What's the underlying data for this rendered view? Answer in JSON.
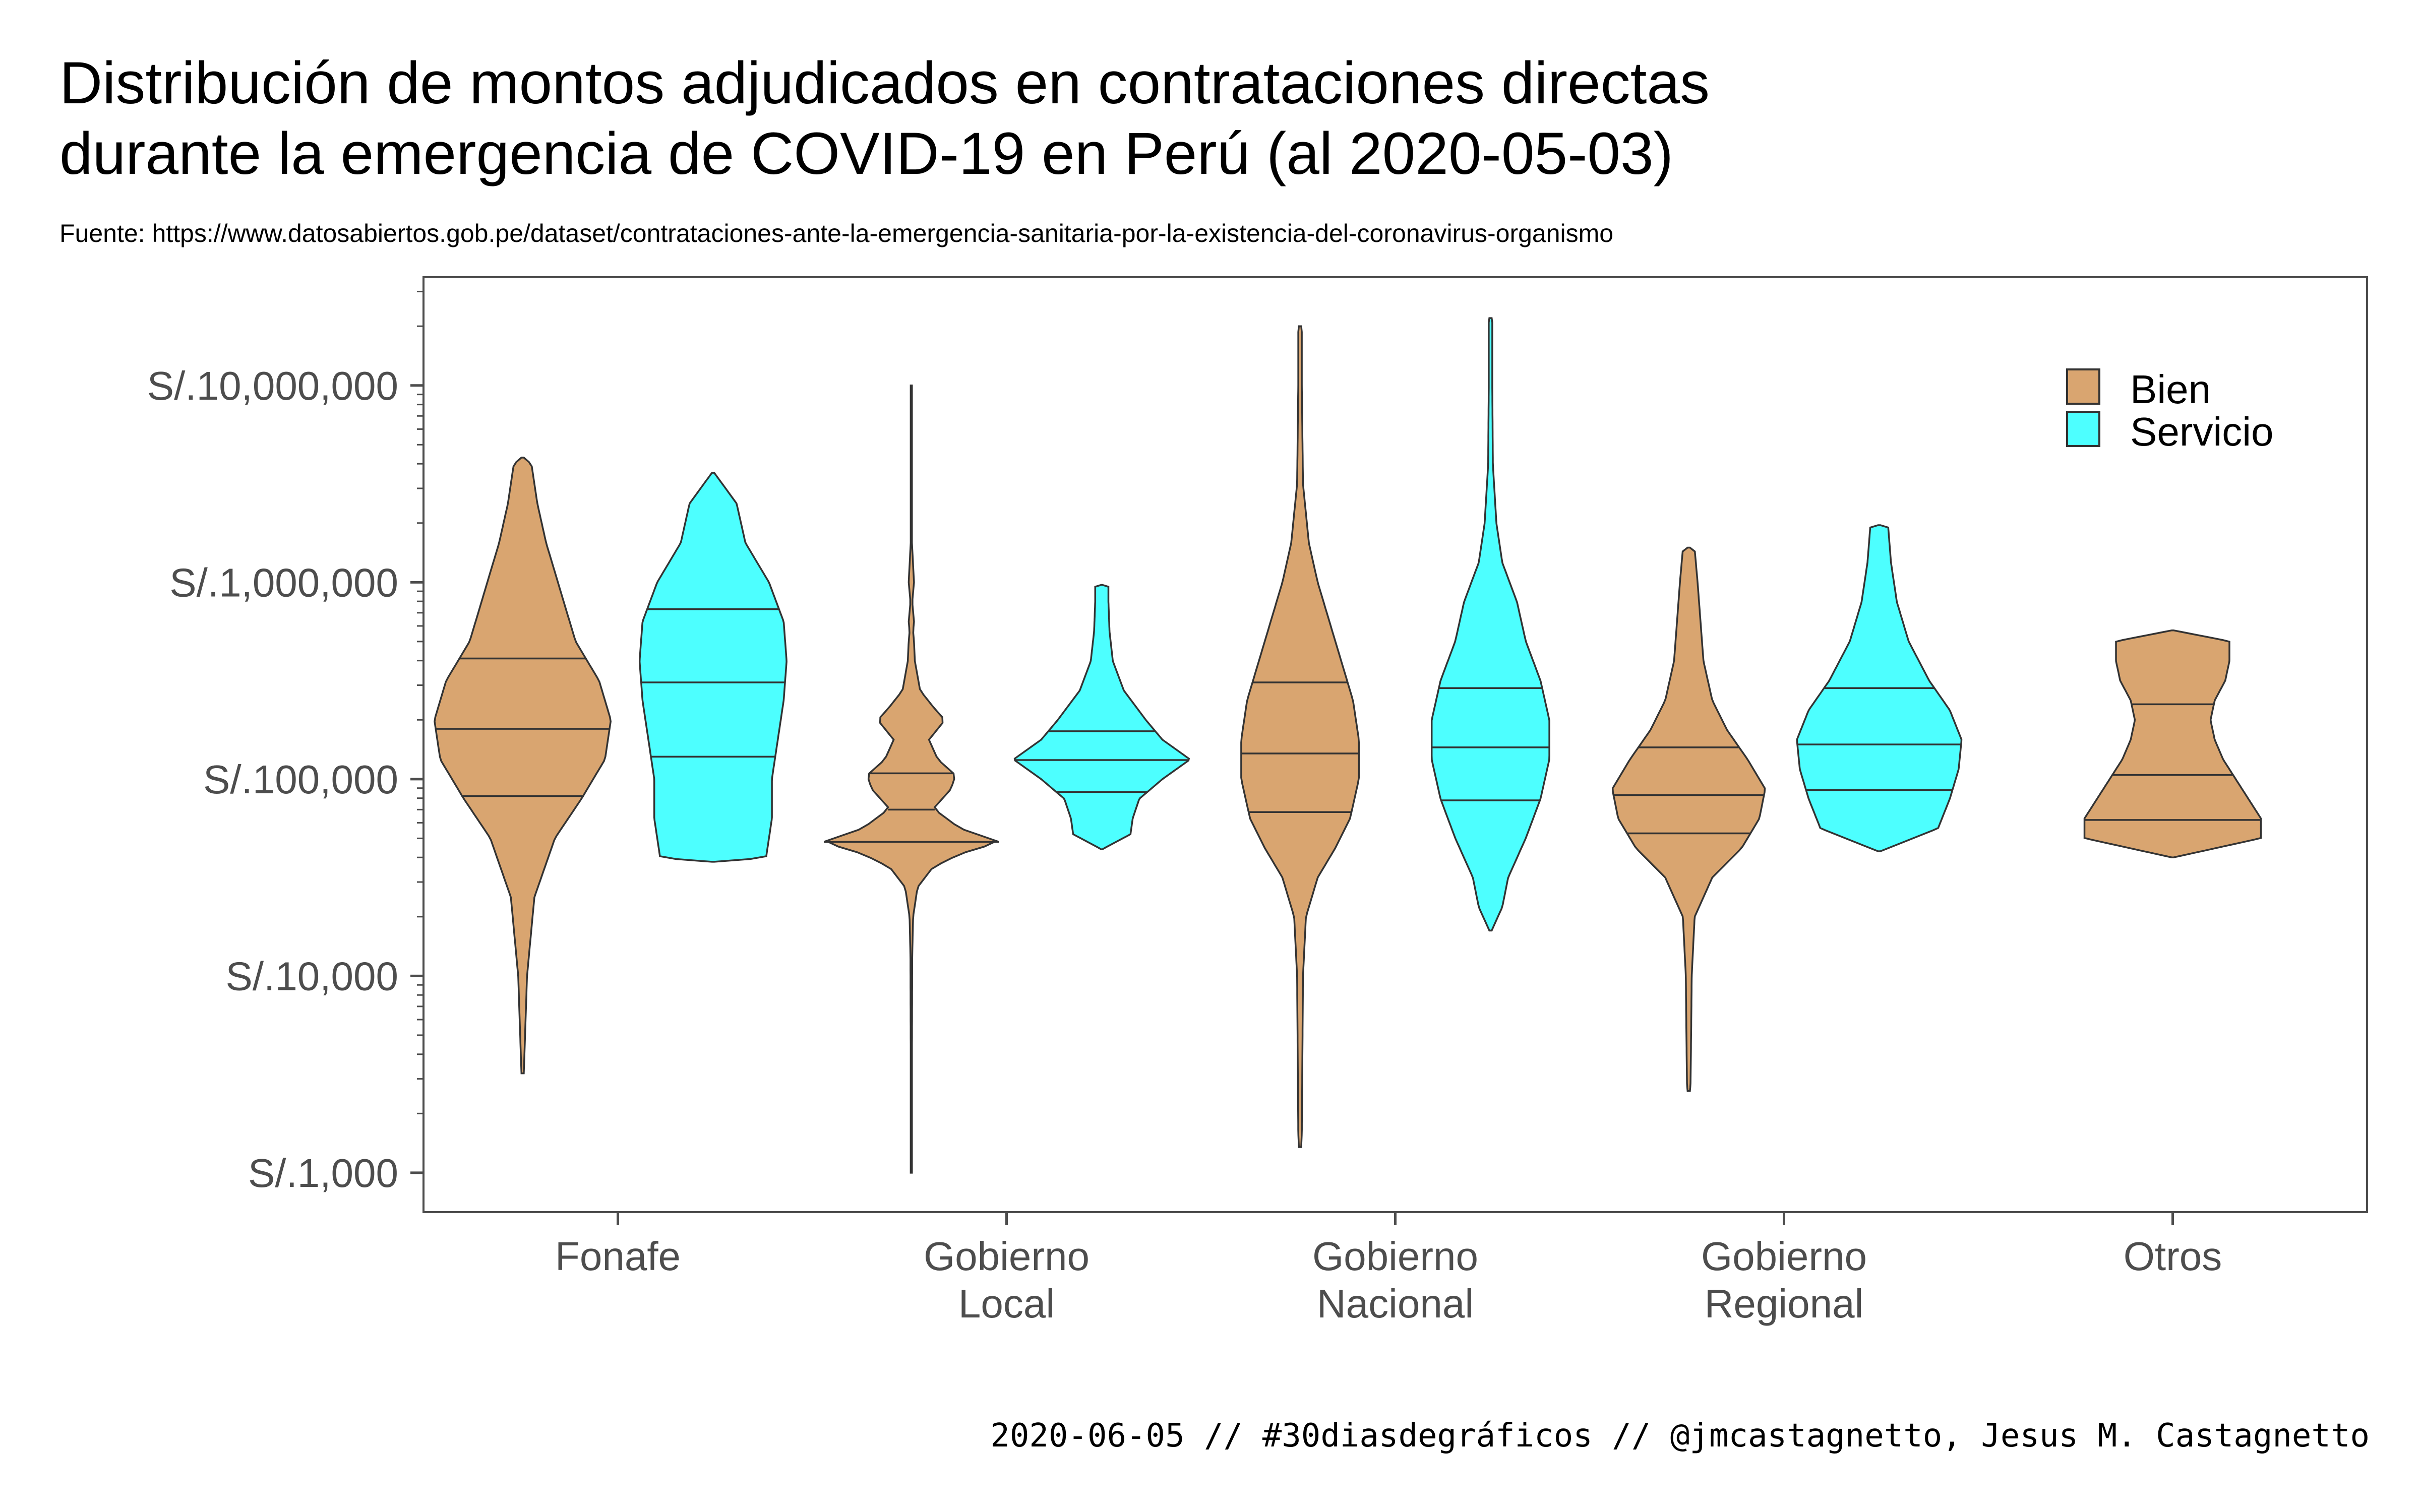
{
  "chart_data": {
    "type": "violin",
    "title_lines": [
      "Distribución de montos adjudicados en contrataciones directas",
      "durante la emergencia de COVID-19 en Perú (al 2020-05-03)"
    ],
    "subtitle": "Fuente: https://www.datosabiertos.gob.pe/dataset/contrataciones-ante-la-emergencia-sanitaria-por-la-existencia-del-coronavirus-organismo",
    "caption": "2020-06-05 // #30diasdegráficos // @jmcastagnetto, Jesus M. Castagnetto",
    "y_scale": "log10",
    "y_range_log10": [
      2.8,
      7.55
    ],
    "y_ticks": [
      {
        "value": 1000,
        "label": "S/.1,000"
      },
      {
        "value": 10000,
        "label": "S/.10,000"
      },
      {
        "value": 100000,
        "label": "S/.100,000"
      },
      {
        "value": 1000000,
        "label": "S/.1,000,000"
      },
      {
        "value": 10000000,
        "label": "S/.10,000,000"
      }
    ],
    "categories": [
      {
        "key": "fonafe",
        "lines": [
          "Fonafe"
        ]
      },
      {
        "key": "gobierno-local",
        "lines": [
          "Gobierno",
          "Local"
        ]
      },
      {
        "key": "gobierno-nacional",
        "lines": [
          "Gobierno",
          "Nacional"
        ]
      },
      {
        "key": "gobierno-regional",
        "lines": [
          "Gobierno",
          "Regional"
        ]
      },
      {
        "key": "otros",
        "lines": [
          "Otros"
        ]
      }
    ],
    "legend": {
      "position": "top-right",
      "items": [
        {
          "label": "Bien",
          "color": "#d9a570"
        },
        {
          "label": "Servicio",
          "color": "#4dffff"
        }
      ]
    },
    "colors": {
      "Bien": "#d9a570",
      "Servicio": "#4dffff",
      "outline": "#333333",
      "axis": "#4d4d4d"
    },
    "series": [
      {
        "category": "fonafe",
        "type": "Bien",
        "min": 3200,
        "max": 4300000,
        "quartiles": [
          82000,
          180000,
          410000
        ],
        "density": [
          [
            3.5,
            0.012
          ],
          [
            4.0,
            0.015
          ],
          [
            4.4,
            0.04
          ],
          [
            4.7,
            0.11
          ],
          [
            4.9,
            0.2
          ],
          [
            5.1,
            0.28
          ],
          [
            5.3,
            0.3
          ],
          [
            5.5,
            0.26
          ],
          [
            5.7,
            0.18
          ],
          [
            6.0,
            0.12
          ],
          [
            6.2,
            0.08
          ],
          [
            6.4,
            0.05
          ],
          [
            6.6,
            0.03
          ]
        ]
      },
      {
        "category": "fonafe",
        "type": "Servicio",
        "min": 38000,
        "max": 3600000,
        "quartiles": [
          130000,
          310000,
          730000
        ],
        "density": [
          [
            4.6,
            0.18
          ],
          [
            4.8,
            0.2
          ],
          [
            5.0,
            0.2
          ],
          [
            5.2,
            0.22
          ],
          [
            5.4,
            0.24
          ],
          [
            5.6,
            0.25
          ],
          [
            5.8,
            0.24
          ],
          [
            6.0,
            0.19
          ],
          [
            6.2,
            0.11
          ],
          [
            6.4,
            0.08
          ],
          [
            6.56,
            0.08
          ]
        ]
      },
      {
        "category": "gobierno-local",
        "type": "Bien",
        "min": 1000,
        "max": 10000000,
        "quartiles": [
          48000,
          70000,
          107000
        ],
        "density": [
          [
            3.2,
            0.006
          ],
          [
            3.5,
            0.006
          ],
          [
            3.8,
            0.008
          ],
          [
            4.1,
            0.01
          ],
          [
            4.3,
            0.02
          ],
          [
            4.45,
            0.07
          ],
          [
            4.55,
            0.24
          ],
          [
            4.62,
            0.55
          ],
          [
            4.68,
            1.0
          ],
          [
            4.75,
            0.55
          ],
          [
            4.85,
            0.25
          ],
          [
            4.95,
            0.45
          ],
          [
            5.02,
            0.5
          ],
          [
            5.1,
            0.3
          ],
          [
            5.2,
            0.2
          ],
          [
            5.3,
            0.38
          ],
          [
            5.36,
            0.26
          ],
          [
            5.45,
            0.1
          ],
          [
            5.6,
            0.04
          ],
          [
            5.7,
            0.03
          ],
          [
            5.75,
            0.02
          ],
          [
            5.8,
            0.03
          ],
          [
            5.9,
            0.01
          ],
          [
            6.0,
            0.03
          ],
          [
            6.2,
            0.007
          ],
          [
            6.5,
            0.006
          ],
          [
            7.0,
            0.006
          ]
        ]
      },
      {
        "category": "gobierno-local",
        "type": "Servicio",
        "min": 44000,
        "max": 970000,
        "quartiles": [
          86000,
          125000,
          175000
        ],
        "density": [
          [
            4.64,
            0.24
          ],
          [
            4.72,
            0.26
          ],
          [
            4.8,
            0.28
          ],
          [
            4.9,
            0.34
          ],
          [
            5.0,
            0.55
          ],
          [
            5.1,
            0.8
          ],
          [
            5.2,
            0.55
          ],
          [
            5.3,
            0.4
          ],
          [
            5.45,
            0.2
          ],
          [
            5.6,
            0.1
          ],
          [
            5.75,
            0.07
          ],
          [
            5.9,
            0.06
          ],
          [
            5.98,
            0.06
          ]
        ]
      },
      {
        "category": "gobierno-nacional",
        "type": "Bien",
        "min": 1350,
        "max": 20000000,
        "quartiles": [
          68000,
          135000,
          310000
        ],
        "density": [
          [
            3.2,
            0.006
          ],
          [
            3.6,
            0.008
          ],
          [
            4.0,
            0.01
          ],
          [
            4.3,
            0.02
          ],
          [
            4.5,
            0.06
          ],
          [
            4.65,
            0.12
          ],
          [
            4.8,
            0.17
          ],
          [
            5.0,
            0.2
          ],
          [
            5.2,
            0.2
          ],
          [
            5.4,
            0.18
          ],
          [
            5.6,
            0.14
          ],
          [
            5.8,
            0.1
          ],
          [
            6.0,
            0.06
          ],
          [
            6.2,
            0.03
          ],
          [
            6.5,
            0.01
          ],
          [
            7.0,
            0.006
          ],
          [
            7.3,
            0.006
          ]
        ]
      },
      {
        "category": "gobierno-nacional",
        "type": "Servicio",
        "min": 17000,
        "max": 22000000,
        "quartiles": [
          78000,
          145000,
          290000
        ],
        "density": [
          [
            4.23,
            0.02
          ],
          [
            4.35,
            0.04
          ],
          [
            4.5,
            0.06
          ],
          [
            4.7,
            0.12
          ],
          [
            4.9,
            0.17
          ],
          [
            5.1,
            0.2
          ],
          [
            5.3,
            0.2
          ],
          [
            5.5,
            0.17
          ],
          [
            5.7,
            0.12
          ],
          [
            5.9,
            0.09
          ],
          [
            6.1,
            0.04
          ],
          [
            6.3,
            0.02
          ],
          [
            6.6,
            0.008
          ],
          [
            7.0,
            0.006
          ],
          [
            7.34,
            0.006
          ]
        ]
      },
      {
        "category": "gobierno-regional",
        "type": "Bien",
        "min": 2600,
        "max": 1500000,
        "quartiles": [
          53000,
          83000,
          145000
        ],
        "density": [
          [
            3.45,
            0.006
          ],
          [
            3.7,
            0.008
          ],
          [
            4.0,
            0.01
          ],
          [
            4.3,
            0.02
          ],
          [
            4.5,
            0.08
          ],
          [
            4.65,
            0.18
          ],
          [
            4.8,
            0.24
          ],
          [
            4.95,
            0.26
          ],
          [
            5.1,
            0.2
          ],
          [
            5.25,
            0.13
          ],
          [
            5.4,
            0.08
          ],
          [
            5.6,
            0.05
          ],
          [
            5.8,
            0.04
          ],
          [
            6.0,
            0.03
          ],
          [
            6.17,
            0.02
          ]
        ]
      },
      {
        "category": "gobierno-regional",
        "type": "Servicio",
        "min": 43000,
        "max": 1950000,
        "quartiles": [
          88000,
          150000,
          290000
        ],
        "density": [
          [
            4.63,
            0.18
          ],
          [
            4.75,
            0.2
          ],
          [
            4.9,
            0.24
          ],
          [
            5.05,
            0.27
          ],
          [
            5.2,
            0.28
          ],
          [
            5.35,
            0.24
          ],
          [
            5.5,
            0.17
          ],
          [
            5.7,
            0.1
          ],
          [
            5.9,
            0.06
          ],
          [
            6.1,
            0.04
          ],
          [
            6.29,
            0.03
          ]
        ]
      },
      {
        "category": "otros",
        "type": "Bien",
        "min": 40000,
        "max": 570000,
        "quartiles": [
          62000,
          105000,
          240000
        ],
        "density": [
          [
            4.6,
            0.38
          ],
          [
            4.7,
            0.42
          ],
          [
            4.8,
            0.42
          ],
          [
            4.9,
            0.36
          ],
          [
            5.0,
            0.3
          ],
          [
            5.1,
            0.24
          ],
          [
            5.2,
            0.2
          ],
          [
            5.3,
            0.18
          ],
          [
            5.4,
            0.2
          ],
          [
            5.5,
            0.25
          ],
          [
            5.6,
            0.27
          ],
          [
            5.7,
            0.27
          ],
          [
            5.76,
            0.27
          ]
        ]
      }
    ]
  }
}
